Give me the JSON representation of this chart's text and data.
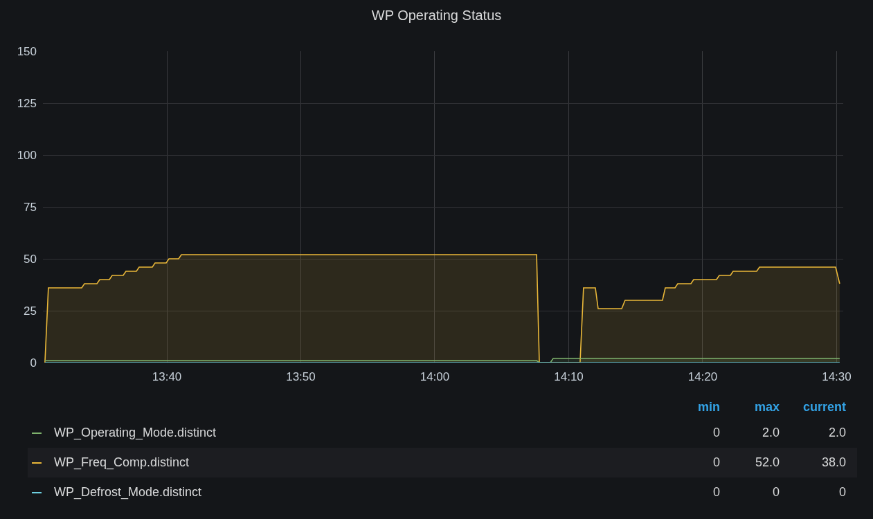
{
  "chart_data": {
    "type": "area",
    "title": "WP Operating Status",
    "xlim": [
      13.5125,
      14.5082
    ],
    "xticks": [
      {
        "value": 13.6667,
        "label": "13:40"
      },
      {
        "value": 13.8333,
        "label": "13:50"
      },
      {
        "value": 14.0,
        "label": "14:00"
      },
      {
        "value": 14.1667,
        "label": "14:10"
      },
      {
        "value": 14.3333,
        "label": "14:20"
      },
      {
        "value": 14.5,
        "label": "14:30"
      }
    ],
    "ylim": [
      0,
      150
    ],
    "yticks": [
      0,
      25,
      50,
      75,
      100,
      125,
      150
    ],
    "grid": true,
    "legend": "bottom",
    "line_style": "solid",
    "marker": "none",
    "series": [
      {
        "name": "WP_Operating_Mode.distinct",
        "color": "#7eb26d",
        "x": [
          13.515,
          14.1267,
          14.1301,
          14.1438,
          14.1473,
          14.5038
        ],
        "values": [
          1,
          1,
          0,
          0,
          2,
          2
        ]
      },
      {
        "name": "WP_Freq_Comp.distinct",
        "color": "#eab839",
        "x": [
          13.515,
          13.5193,
          13.5607,
          13.5642,
          13.5797,
          13.5832,
          13.5952,
          13.5987,
          13.6123,
          13.6158,
          13.6288,
          13.6322,
          13.6486,
          13.652,
          13.6658,
          13.6693,
          13.6813,
          13.6848,
          14.1267,
          14.1301,
          14.1808,
          14.1851,
          14.1998,
          14.2033,
          14.2326,
          14.2368,
          14.2833,
          14.2868,
          14.2989,
          14.3023,
          14.3187,
          14.3221,
          14.3505,
          14.354,
          14.3678,
          14.3712,
          14.4005,
          14.404,
          14.4987,
          14.5038
        ],
        "values": [
          0,
          36,
          36,
          38,
          38,
          40,
          40,
          42,
          42,
          44,
          44,
          46,
          46,
          48,
          48,
          50,
          50,
          52,
          52,
          0,
          0,
          36,
          36,
          26,
          26,
          30,
          30,
          36,
          36,
          38,
          38,
          40,
          40,
          42,
          42,
          44,
          44,
          46,
          46,
          38
        ]
      },
      {
        "name": "WP_Defrost_Mode.distinct",
        "type": "line",
        "color": "#6ed0e0",
        "x": [
          13.515,
          14.5038
        ],
        "values": [
          0,
          0
        ]
      }
    ],
    "annotations": [
      "min",
      "max",
      "current",
      "0",
      "2.0",
      "2.0",
      "0",
      "52.0",
      "38.0",
      "0",
      "0",
      "0"
    ]
  }
}
